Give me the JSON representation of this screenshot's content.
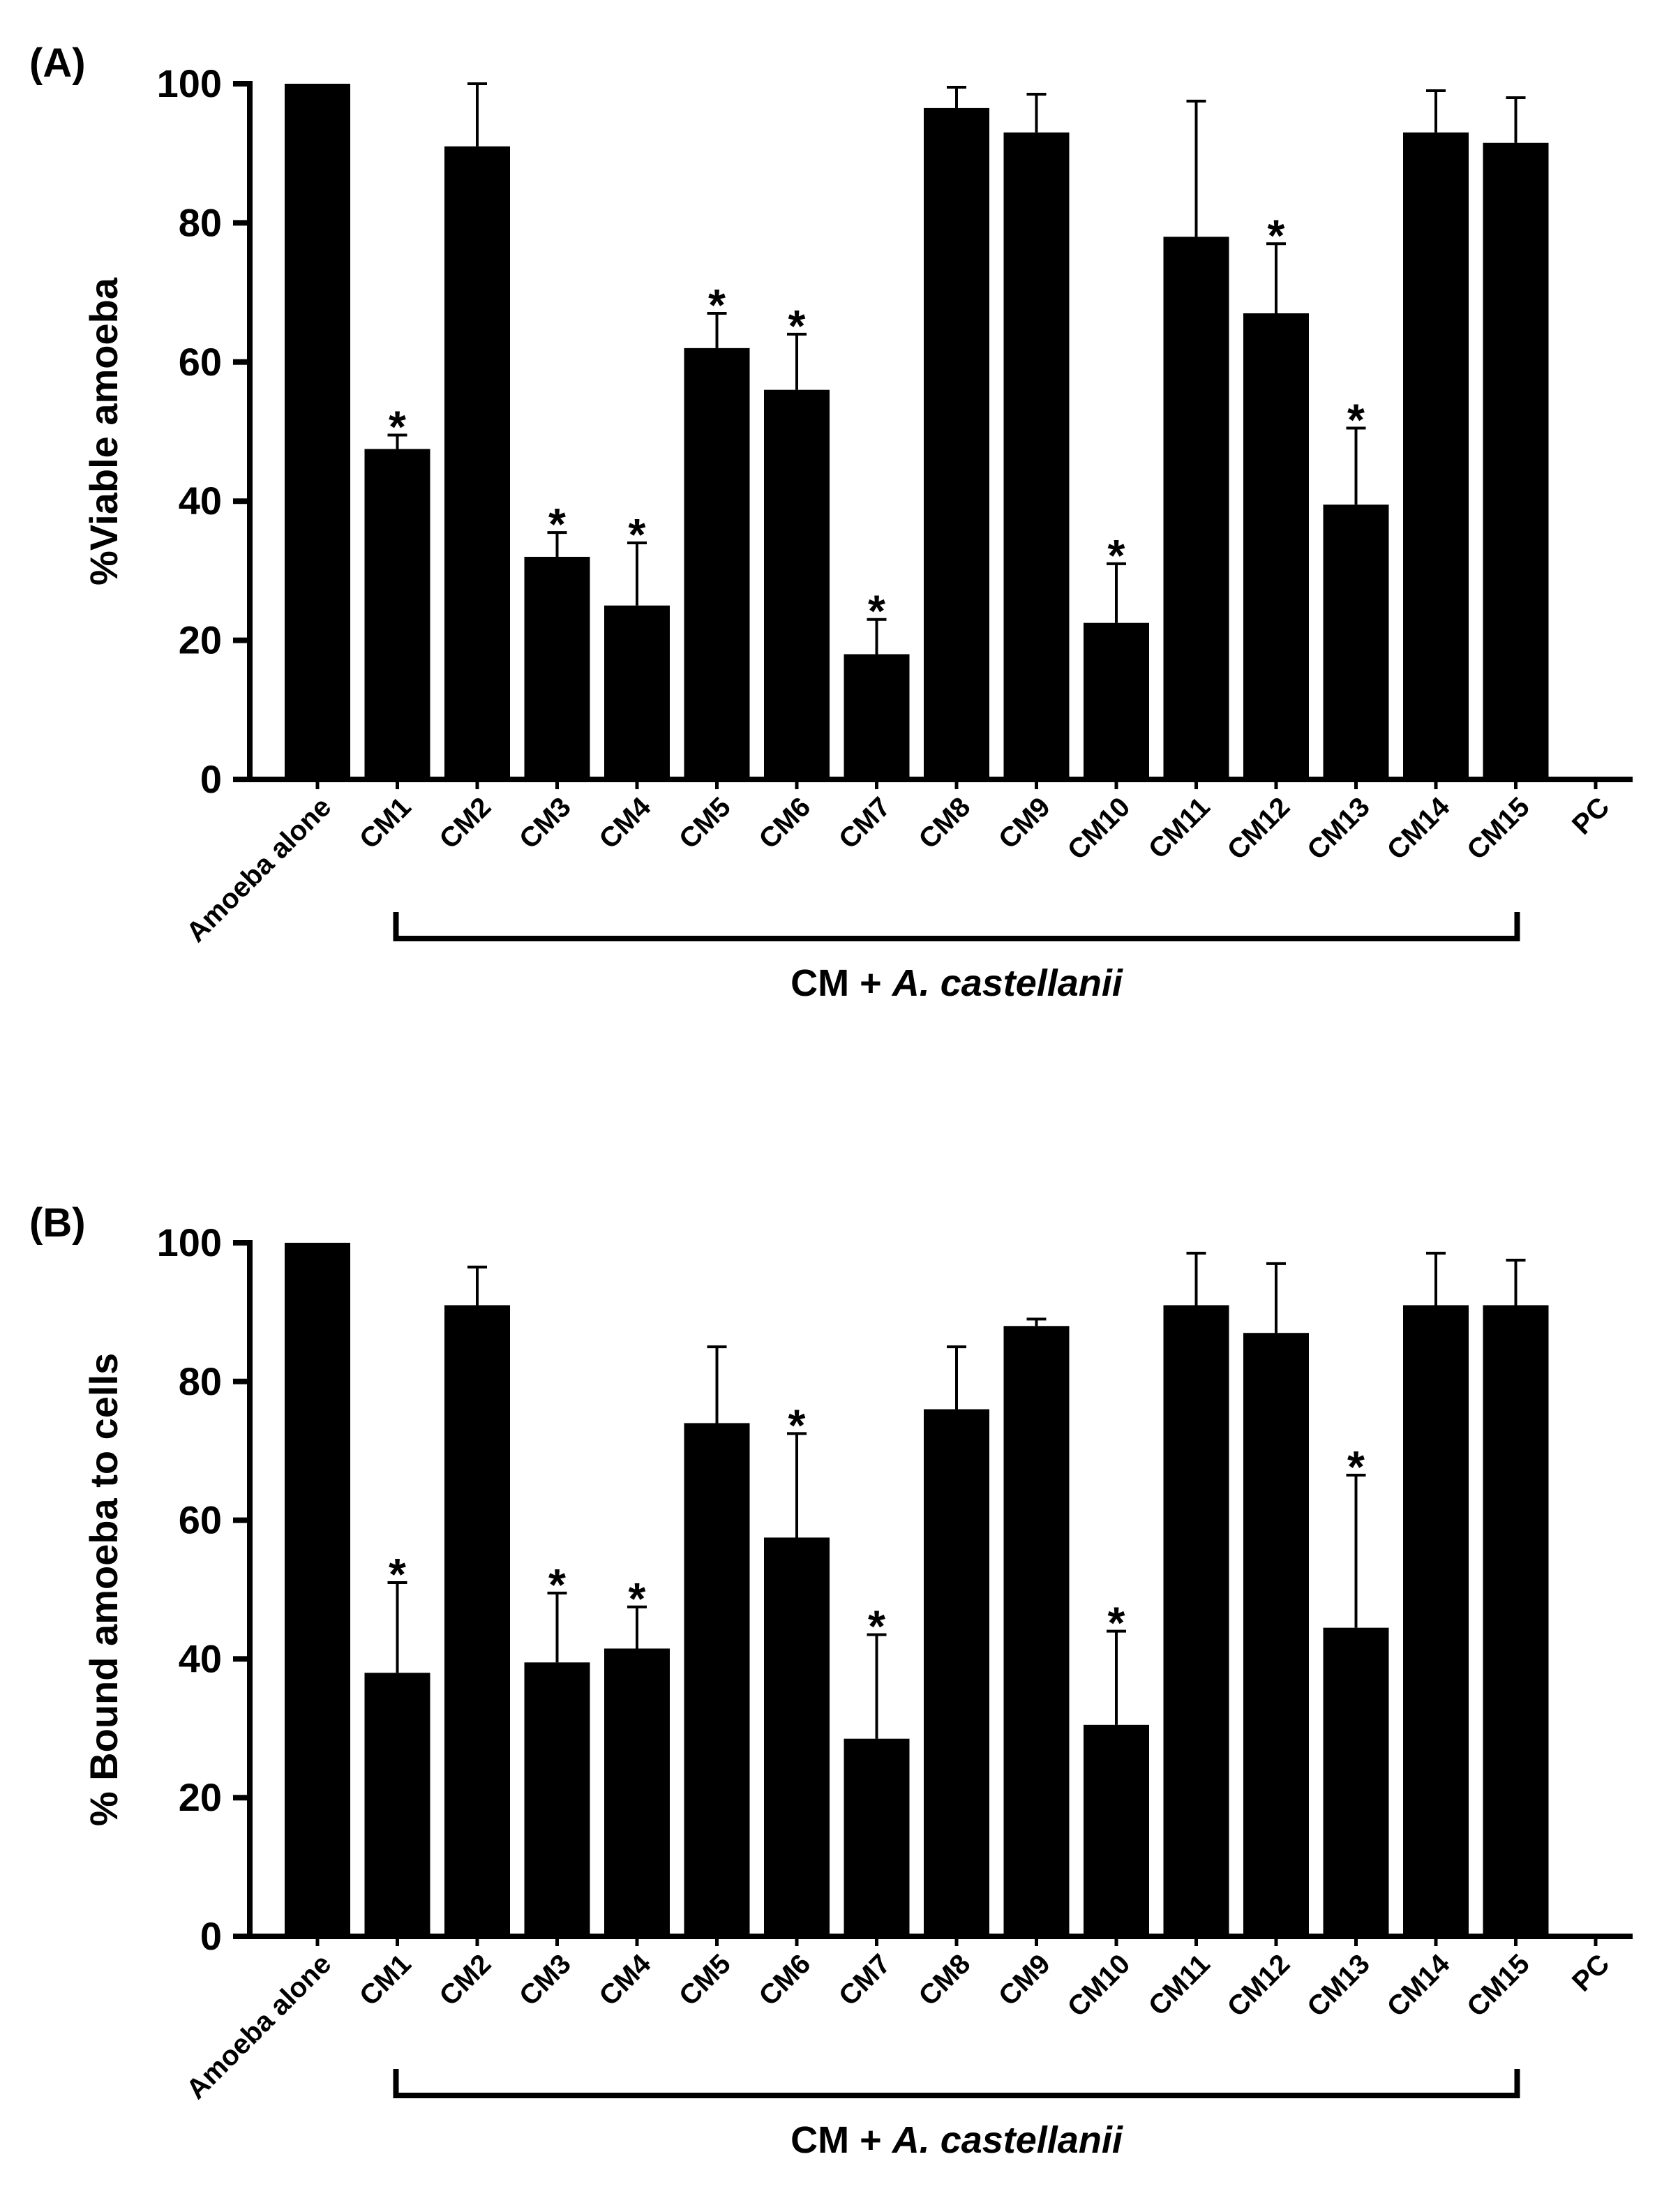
{
  "chart_data": [
    {
      "type": "bar",
      "panel_label": "(A)",
      "ylabel": "%Viable amoeba",
      "ylim": [
        0,
        100
      ],
      "yticks": [
        "0",
        "20",
        "40",
        "60",
        "80",
        "100"
      ],
      "categories": [
        "Amoeba alone",
        "CM1",
        "CM2",
        "CM3",
        "CM4",
        "CM5",
        "CM6",
        "CM7",
        "CM8",
        "CM9",
        "CM10",
        "CM11",
        "CM12",
        "CM13",
        "CM14",
        "CM15",
        "PC"
      ],
      "values": [
        100,
        47.5,
        91,
        32,
        25,
        62,
        56,
        18,
        96.5,
        93,
        22.5,
        78,
        67,
        39.5,
        93,
        91.5,
        0
      ],
      "errors": [
        0,
        2,
        9,
        3.5,
        9,
        5,
        8,
        5,
        3,
        5.5,
        8.5,
        19.5,
        10,
        11,
        6,
        6.5,
        0
      ],
      "significant": [
        false,
        true,
        false,
        true,
        true,
        true,
        true,
        true,
        false,
        false,
        true,
        false,
        true,
        true,
        false,
        false,
        false
      ],
      "star": "*",
      "group_label_prefix": "CM + ",
      "group_label_italic": "A. castellanii",
      "grid": false
    },
    {
      "type": "bar",
      "panel_label": "(B)",
      "ylabel": "% Bound amoeba to cells",
      "ylim": [
        0,
        100
      ],
      "yticks": [
        "0",
        "20",
        "40",
        "60",
        "80",
        "100"
      ],
      "categories": [
        "Amoeba alone",
        "CM1",
        "CM2",
        "CM3",
        "CM4",
        "CM5",
        "CM6",
        "CM7",
        "CM8",
        "CM9",
        "CM10",
        "CM11",
        "CM12",
        "CM13",
        "CM14",
        "CM15",
        "PC"
      ],
      "values": [
        100,
        38,
        91,
        39.5,
        41.5,
        74,
        57.5,
        28.5,
        76,
        88,
        30.5,
        91,
        87,
        44.5,
        91,
        91,
        0
      ],
      "errors": [
        0,
        13,
        5.5,
        10,
        6,
        11,
        15,
        15,
        9,
        1,
        13.5,
        7.5,
        10,
        22,
        7.5,
        6.5,
        0
      ],
      "significant": [
        false,
        true,
        false,
        true,
        true,
        false,
        true,
        true,
        false,
        false,
        true,
        false,
        false,
        true,
        false,
        false,
        false
      ],
      "star": "*",
      "group_label_prefix": "CM + ",
      "group_label_italic": "A. castellanii",
      "grid": false
    }
  ]
}
